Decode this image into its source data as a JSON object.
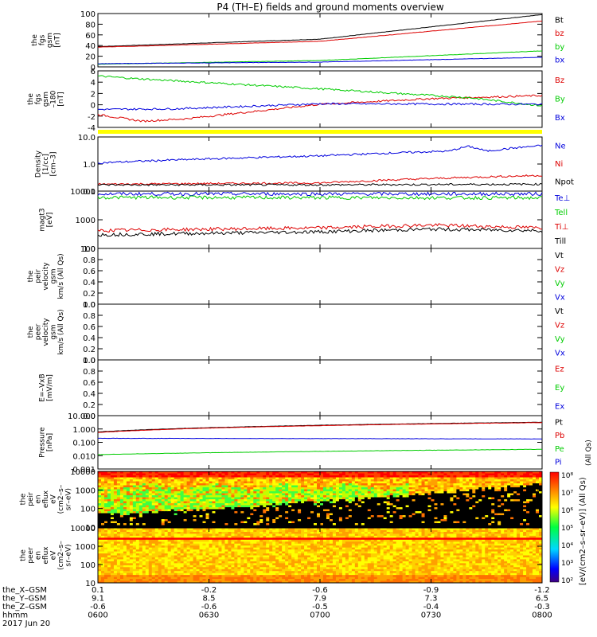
{
  "title": "P4 (TH–E) fields and ground moments overview",
  "colors": {
    "black": "#000000",
    "red": "#dd0000",
    "green": "#00cc00",
    "blue": "#0000dd",
    "yellow": "#ffff00"
  },
  "chart_data": [
    {
      "type": "line",
      "id": "fgs",
      "ylabel": [
        "the",
        "fgs",
        "gsm",
        "[nT]"
      ],
      "ylim": [
        0,
        100
      ],
      "yticks": [
        "100",
        "80",
        "60",
        "40",
        "20",
        "0"
      ],
      "legend": [
        "Bt",
        "bz",
        "by",
        "bx"
      ],
      "series": [
        {
          "name": "Bt",
          "color": "black",
          "x": [
            0,
            60,
            120
          ],
          "y": [
            38,
            52,
            98
          ]
        },
        {
          "name": "bz",
          "color": "red",
          "x": [
            0,
            60,
            120
          ],
          "y": [
            37,
            48,
            86
          ]
        },
        {
          "name": "by",
          "color": "green",
          "x": [
            0,
            60,
            120
          ],
          "y": [
            5,
            12,
            30
          ]
        },
        {
          "name": "bx",
          "color": "blue",
          "x": [
            0,
            60,
            120
          ],
          "y": [
            6,
            9,
            18
          ]
        }
      ]
    },
    {
      "type": "line",
      "id": "fgs2",
      "ylabel": [
        "the",
        "fgs",
        "gsm",
        "–180",
        "[nT]"
      ],
      "ylim": [
        -5,
        6
      ],
      "yticks": [
        "6",
        "4",
        "2",
        "0",
        "-2",
        "-4"
      ],
      "legend": [
        "Bz",
        "By",
        "Bx"
      ],
      "series": [
        {
          "name": "Bz",
          "color": "red",
          "x": [
            0,
            12,
            24,
            60,
            90,
            120
          ],
          "y": [
            -2.5,
            -3.8,
            -3.3,
            -0.5,
            0.6,
            1.2
          ]
        },
        {
          "name": "By",
          "color": "green",
          "x": [
            0,
            10,
            60,
            100,
            120
          ],
          "y": [
            5.0,
            4.5,
            2.5,
            0.8,
            -0.8
          ]
        },
        {
          "name": "Bx",
          "color": "blue",
          "x": [
            0,
            20,
            60,
            120
          ],
          "y": [
            -1.5,
            -1.4,
            -0.4,
            -0.5
          ]
        }
      ]
    },
    {
      "type": "line",
      "id": "density",
      "ylabel": [
        "Density",
        "[1/cc]",
        "[cm–3]"
      ],
      "log": true,
      "ylim": [
        0.1,
        10
      ],
      "yticks": [
        "10.0",
        "1.0",
        "0.1"
      ],
      "legend": [
        "Ne",
        "Ni",
        "Npot"
      ],
      "series": [
        {
          "name": "Ne",
          "color": "blue",
          "x": [
            0,
            60,
            95,
            100,
            105,
            120
          ],
          "y": [
            1.1,
            2.0,
            3.0,
            4.5,
            3.0,
            4.8
          ]
        },
        {
          "name": "Ni",
          "color": "red",
          "x": [
            0,
            60,
            120
          ],
          "y": [
            0.18,
            0.2,
            0.38
          ]
        },
        {
          "name": "Npot",
          "color": "black",
          "x": [
            0,
            60,
            120
          ],
          "y": [
            0.17,
            0.17,
            0.18
          ]
        }
      ]
    },
    {
      "type": "line",
      "id": "temp",
      "ylabel": [
        "magt3",
        "[eV]"
      ],
      "log": true,
      "ylim": [
        100,
        10000
      ],
      "yticks": [
        "10000",
        "1000",
        "100"
      ],
      "legend": [
        "Te⊥",
        "Tell",
        "Ti⊥",
        "Till"
      ],
      "series": [
        {
          "name": "Te⊥",
          "color": "blue",
          "x": [
            0,
            120
          ],
          "y": [
            8000,
            8000
          ]
        },
        {
          "name": "Tell",
          "color": "green",
          "x": [
            0,
            120
          ],
          "y": [
            6000,
            5800
          ]
        },
        {
          "name": "Ti⊥",
          "color": "red",
          "x": [
            0,
            60,
            90,
            120
          ],
          "y": [
            420,
            520,
            650,
            520
          ]
        },
        {
          "name": "Till",
          "color": "black",
          "x": [
            0,
            60,
            90,
            120
          ],
          "y": [
            300,
            380,
            470,
            420
          ]
        }
      ]
    },
    {
      "type": "line",
      "id": "peir",
      "ylabel": [
        "the",
        "peir",
        "velocity",
        "gsm",
        "km/s (All Qs)"
      ],
      "ylim": [
        0,
        1
      ],
      "yticks": [
        "1.0",
        "0.8",
        "0.6",
        "0.4",
        "0.2",
        "0.0"
      ],
      "legend": [
        "Vt",
        "Vz",
        "Vy",
        "Vx"
      ],
      "series": []
    },
    {
      "type": "line",
      "id": "peer",
      "ylabel": [
        "the",
        "peer",
        "velocity",
        "gsm",
        "km/s (All Qs)"
      ],
      "ylim": [
        0,
        1
      ],
      "yticks": [
        "1.0",
        "0.8",
        "0.6",
        "0.4",
        "0.2",
        "0.0"
      ],
      "legend": [
        "Vt",
        "Vz",
        "Vy",
        "Vx"
      ],
      "series": []
    },
    {
      "type": "line",
      "id": "efield",
      "ylabel": [
        "E=–VxB",
        "[mV/m]"
      ],
      "ylim": [
        0,
        1
      ],
      "yticks": [
        "1.0",
        "0.8",
        "0.6",
        "0.4",
        "0.2",
        "0.0"
      ],
      "legend": [
        "Ez",
        "Ey",
        "Ex"
      ],
      "series": []
    },
    {
      "type": "line",
      "id": "pressure",
      "ylabel": [
        "Pressure",
        "[nPa]"
      ],
      "log": true,
      "ylim": [
        0.001,
        10
      ],
      "yticks": [
        "10.000",
        "1.000",
        "0.100",
        "0.010",
        "0.001"
      ],
      "legend": [
        "Pt",
        "Pb",
        "Pe",
        "Pi"
      ],
      "series": [
        {
          "name": "Pt",
          "color": "black",
          "x": [
            0,
            120
          ],
          "y": [
            0.6,
            3.2
          ]
        },
        {
          "name": "Pb",
          "color": "red",
          "x": [
            0,
            120
          ],
          "y": [
            0.55,
            3.0
          ]
        },
        {
          "name": "Pe",
          "color": "green",
          "x": [
            0,
            120
          ],
          "y": [
            0.012,
            0.03
          ]
        },
        {
          "name": "Pi",
          "color": "blue",
          "x": [
            0,
            120
          ],
          "y": [
            0.2,
            0.18
          ]
        }
      ]
    },
    {
      "type": "heatmap",
      "id": "peir_spec",
      "ylabel": [
        "the",
        "peir",
        "en",
        "eflux",
        "eV",
        "(cm2–s–",
        "sr–eV)"
      ],
      "yticks": [
        "10000",
        "1000",
        "100",
        "10"
      ]
    },
    {
      "type": "heatmap",
      "id": "peer_spec",
      "ylabel": [
        "the",
        "peer",
        "en",
        "eflux",
        "eV",
        "(cm2–s–",
        "sr–eV)"
      ],
      "yticks": [
        "10000",
        "1000",
        "100",
        "10"
      ]
    }
  ],
  "colorbar": {
    "ticks": [
      "10⁸",
      "10⁷",
      "10⁶",
      "10⁵",
      "10⁴",
      "10³",
      "10²"
    ],
    "label": "[eV/(cm2–s–sr–eV)] (All Qs)"
  },
  "side_label": "(All Qs)",
  "xaxis": {
    "rows": [
      {
        "label": "the_X–GSM",
        "values": [
          "0.1",
          "-0.2",
          "-0.6",
          "-0.9",
          "-1.2"
        ]
      },
      {
        "label": "the_Y–GSM",
        "values": [
          "9.1",
          "8.5",
          "7.9",
          "7.3",
          "6.5"
        ]
      },
      {
        "label": "the_Z–GSM",
        "values": [
          "-0.6",
          "-0.6",
          "-0.5",
          "-0.4",
          "-0.3"
        ]
      },
      {
        "label": "hhmm",
        "values": [
          "0600",
          "0630",
          "0700",
          "0730",
          "0800"
        ]
      }
    ],
    "date": "2017 Jun 20"
  }
}
